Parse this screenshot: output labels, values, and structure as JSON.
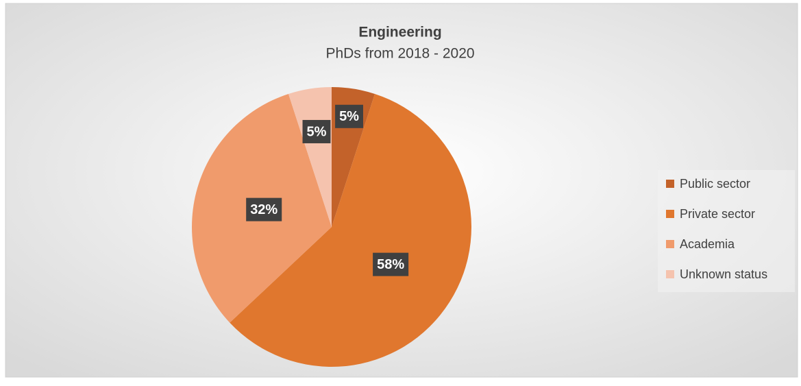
{
  "chart_data": {
    "type": "pie",
    "title": "Engineering",
    "subtitle": "PhDs from 2018 - 2020",
    "categories": [
      "Public sector",
      "Private sector",
      "Academia",
      "Unknown status"
    ],
    "values": [
      5,
      58,
      32,
      5
    ],
    "value_labels": [
      "5%",
      "58%",
      "32%",
      "5%"
    ],
    "colors": [
      "#c3622a",
      "#e0772e",
      "#f09b6c",
      "#f5c3ae"
    ],
    "legend": "right"
  }
}
